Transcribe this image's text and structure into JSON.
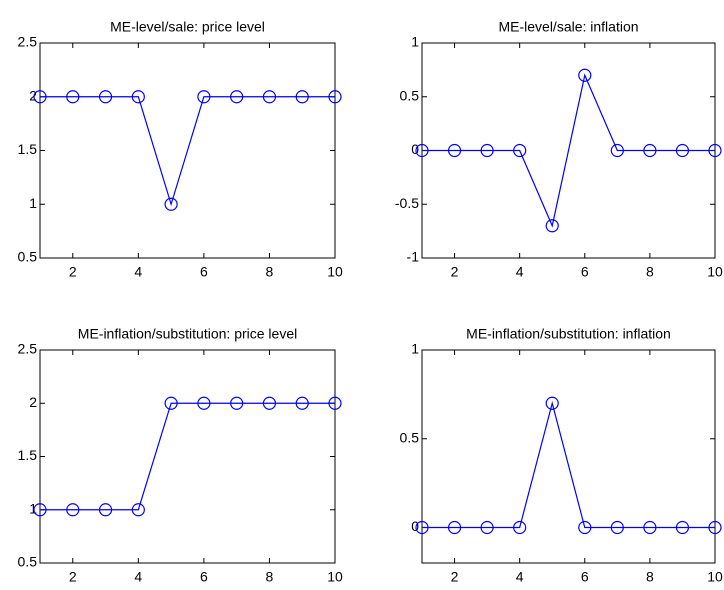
{
  "chart_data": [
    {
      "type": "line",
      "title": "ME-level/sale: price level",
      "x": [
        1,
        2,
        3,
        4,
        5,
        6,
        7,
        8,
        9,
        10
      ],
      "values": [
        2,
        2,
        2,
        2,
        1,
        2,
        2,
        2,
        2,
        2
      ],
      "color": "#0000ff",
      "marker": "circle",
      "xlim": [
        1,
        10
      ],
      "ylim": [
        0.5,
        2.5
      ],
      "xticks": [
        2,
        4,
        6,
        8,
        10
      ],
      "yticks": [
        0.5,
        1,
        1.5,
        2,
        2.5
      ]
    },
    {
      "type": "line",
      "title": "ME-level/sale: inflation",
      "x": [
        1,
        2,
        3,
        4,
        5,
        6,
        7,
        8,
        9,
        10
      ],
      "values": [
        0,
        0,
        0,
        0,
        -0.7,
        0.7,
        0,
        0,
        0,
        0
      ],
      "color": "#0000ff",
      "marker": "circle",
      "xlim": [
        1,
        10
      ],
      "ylim": [
        -1,
        1
      ],
      "xticks": [
        2,
        4,
        6,
        8,
        10
      ],
      "yticks": [
        -1,
        -0.5,
        0,
        0.5,
        1
      ]
    },
    {
      "type": "line",
      "title": "ME-inflation/substitution: price level",
      "x": [
        1,
        2,
        3,
        4,
        5,
        6,
        7,
        8,
        9,
        10
      ],
      "values": [
        1,
        1,
        1,
        1,
        2,
        2,
        2,
        2,
        2,
        2
      ],
      "color": "#0000ff",
      "marker": "circle",
      "xlim": [
        1,
        10
      ],
      "ylim": [
        0.5,
        2.5
      ],
      "xticks": [
        2,
        4,
        6,
        8,
        10
      ],
      "yticks": [
        0.5,
        1,
        1.5,
        2,
        2.5
      ]
    },
    {
      "type": "line",
      "title": "ME-inflation/substitution: inflation",
      "x": [
        1,
        2,
        3,
        4,
        5,
        6,
        7,
        8,
        9,
        10
      ],
      "values": [
        0,
        0,
        0,
        0,
        0.7,
        0,
        0,
        0,
        0,
        0
      ],
      "color": "#0000ff",
      "marker": "circle",
      "xlim": [
        1,
        10
      ],
      "ylim": [
        -0.2,
        1
      ],
      "xticks": [
        2,
        4,
        6,
        8,
        10
      ],
      "yticks": [
        0,
        0.5,
        1
      ]
    }
  ]
}
